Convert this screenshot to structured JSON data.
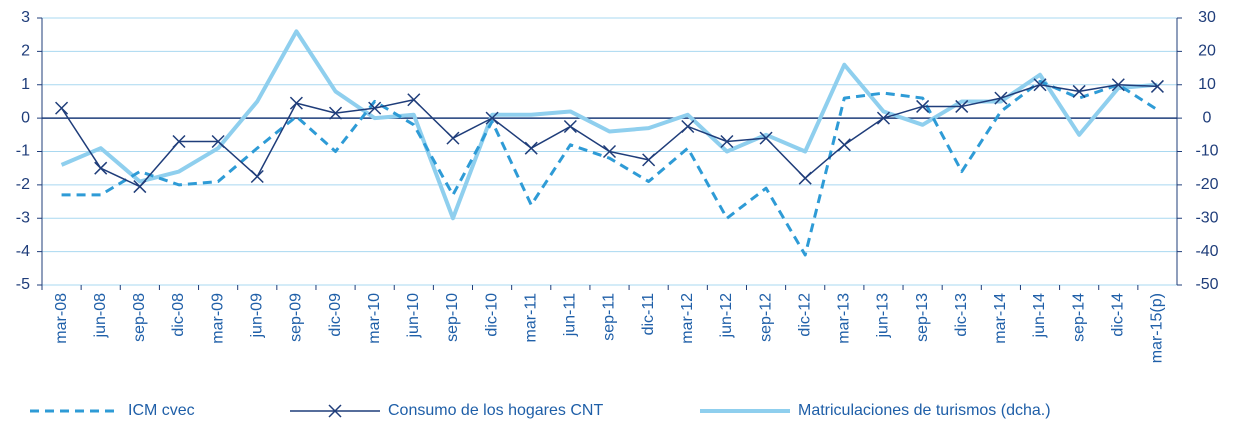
{
  "chart_data": {
    "type": "line",
    "categories": [
      "mar-08",
      "jun-08",
      "sep-08",
      "dic-08",
      "mar-09",
      "jun-09",
      "sep-09",
      "dic-09",
      "mar-10",
      "jun-10",
      "sep-10",
      "dic-10",
      "mar-11",
      "jun-11",
      "sep-11",
      "dic-11",
      "mar-12",
      "jun-12",
      "sep-12",
      "dic-12",
      "mar-13",
      "jun-13",
      "sep-13",
      "dic-13",
      "mar-14",
      "jun-14",
      "sep-14",
      "dic-14",
      "mar-15(p)"
    ],
    "series": [
      {
        "name": "ICM cvec",
        "color": "#2e9bd6",
        "dash": true,
        "values": [
          -2.3,
          -2.3,
          -1.6,
          -2.0,
          -1.9,
          -0.9,
          0.05,
          -1.0,
          0.5,
          -0.2,
          -2.3,
          -0.1,
          -2.6,
          -0.8,
          -1.2,
          -1.9,
          -0.9,
          -3.0,
          -2.1,
          -4.1,
          0.6,
          0.75,
          0.6,
          -1.6,
          0.2,
          1.1,
          0.6,
          1.0,
          0.25
        ]
      },
      {
        "name": "Consumo de los hogares CNT",
        "color": "#1f3d7a",
        "marker": "x",
        "values": [
          0.3,
          -1.5,
          -2.05,
          -0.7,
          -0.7,
          -1.75,
          0.45,
          0.15,
          0.3,
          0.55,
          -0.6,
          0.0,
          -0.9,
          -0.25,
          -1.0,
          -1.25,
          -0.25,
          -0.7,
          -0.6,
          -1.8,
          -0.8,
          0.0,
          0.35,
          0.35,
          0.6,
          1.0,
          0.8,
          1.0,
          0.95
        ]
      },
      {
        "name": "Matriculaciones de turismos (dcha.)",
        "color": "#8fcfee",
        "axis": "y2",
        "values": [
          -14,
          -9,
          -19,
          -16,
          -9,
          5,
          26,
          8,
          0,
          1,
          -30,
          1,
          1,
          2,
          -4,
          -3,
          1,
          -10,
          -5,
          -10,
          16,
          2,
          -2,
          5,
          5,
          13,
          -5,
          9,
          10
        ]
      }
    ],
    "ylim": [
      -5,
      3
    ],
    "yticks": [
      -5,
      -4,
      -3,
      -2,
      -1,
      0,
      1,
      2,
      3
    ],
    "y2lim": [
      -50,
      30
    ],
    "y2ticks": [
      -50,
      -40,
      -30,
      -20,
      -10,
      0,
      10,
      20,
      30
    ],
    "grid": true
  }
}
